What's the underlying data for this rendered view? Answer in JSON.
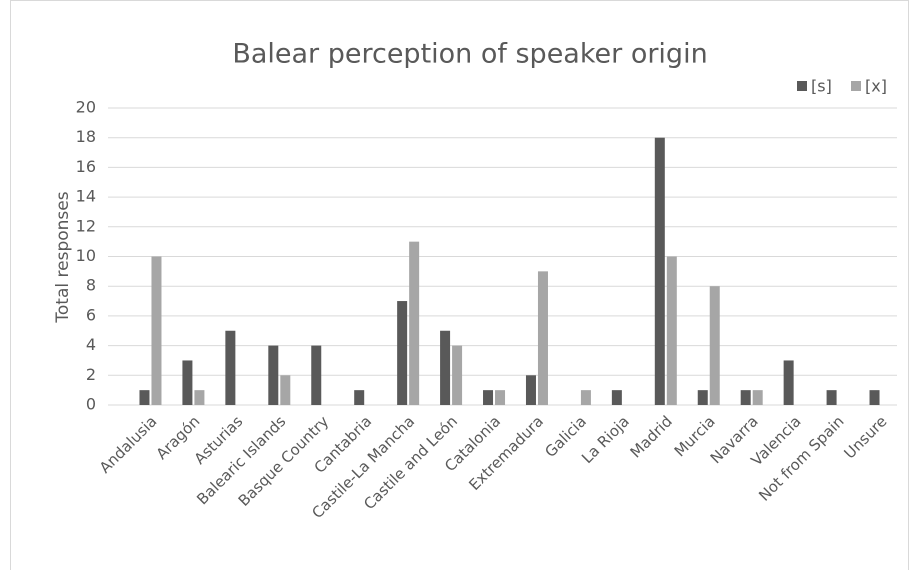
{
  "chart_data": {
    "type": "bar",
    "title": "Balear perception of speaker origin",
    "y_label": "Total responses",
    "categories": [
      "Andalusia",
      "Aragón",
      "Asturias",
      "Balearic Islands",
      "Basque Country",
      "Cantabria",
      "Castile-La Mancha",
      "Castile and León",
      "Catalonia",
      "Extremadura",
      "Galicia",
      "La Rioja",
      "Madrid",
      "Murcia",
      "Navarra",
      "Valencia",
      "Not from Spain",
      "Unsure"
    ],
    "series": [
      {
        "name": "[s]",
        "color": "#595959",
        "values": [
          1,
          3,
          5,
          4,
          4,
          1,
          7,
          5,
          1,
          2,
          0,
          1,
          18,
          1,
          1,
          3,
          1,
          1
        ]
      },
      {
        "name": "[x]",
        "color": "#a6a6a6",
        "values": [
          10,
          1,
          0,
          2,
          0,
          0,
          11,
          4,
          1,
          9,
          1,
          0,
          10,
          8,
          1,
          0,
          0,
          0
        ]
      }
    ],
    "ylim": [
      0,
      20
    ],
    "yticks": [
      0,
      2,
      4,
      6,
      8,
      10,
      12,
      14,
      16,
      18,
      20
    ],
    "grid": true,
    "legend": "top-right"
  }
}
